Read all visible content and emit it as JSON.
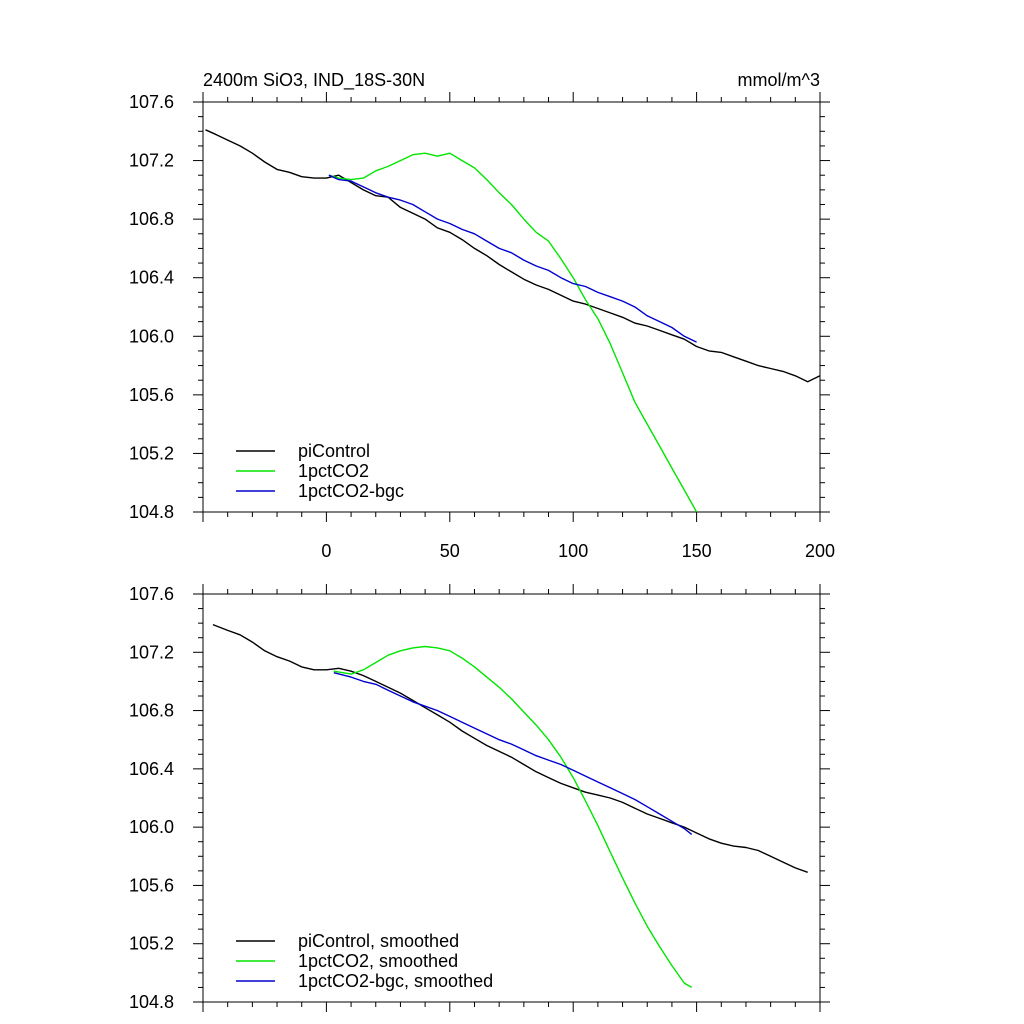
{
  "colors": {
    "piControl": "#000000",
    "1pctCO2": "#00e600",
    "1pctCO2-bgc": "#0000d0",
    "axis": "#000000",
    "background": "#ffffff"
  },
  "chart_data": [
    {
      "type": "line",
      "title": "2400m SiO3, IND_18S-30N",
      "units": "mmol/m^3",
      "xlim": [
        -50,
        200
      ],
      "ylim": [
        104.8,
        107.6
      ],
      "xticks": [
        0,
        50,
        100,
        150,
        200
      ],
      "xtick_labels": [
        "0",
        "50",
        "100",
        "150",
        "200"
      ],
      "yticks": [
        104.8,
        105.2,
        105.6,
        106.0,
        106.4,
        106.8,
        107.2,
        107.6
      ],
      "ytick_labels": [
        "104.8",
        "105.2",
        "105.6",
        "106.0",
        "106.4",
        "106.8",
        "107.2",
        "107.6"
      ],
      "legend_position": "bottom-left",
      "series": [
        {
          "name": "piControl",
          "color_key": "piControl",
          "x": [
            -49,
            -45,
            -40,
            -35,
            -30,
            -25,
            -20,
            -15,
            -10,
            -5,
            0,
            5,
            10,
            15,
            20,
            25,
            30,
            35,
            40,
            45,
            50,
            55,
            60,
            65,
            70,
            75,
            80,
            85,
            90,
            95,
            100,
            105,
            110,
            115,
            120,
            125,
            130,
            135,
            140,
            145,
            150,
            155,
            160,
            165,
            170,
            175,
            180,
            185,
            190,
            195,
            200
          ],
          "y": [
            107.41,
            107.38,
            107.34,
            107.3,
            107.25,
            107.19,
            107.14,
            107.12,
            107.09,
            107.08,
            107.08,
            107.1,
            107.05,
            107.0,
            106.96,
            106.95,
            106.88,
            106.84,
            106.8,
            106.74,
            106.71,
            106.66,
            106.6,
            106.55,
            106.49,
            106.44,
            106.39,
            106.35,
            106.32,
            106.28,
            106.24,
            106.22,
            106.19,
            106.16,
            106.13,
            106.09,
            106.07,
            106.04,
            106.01,
            105.98,
            105.93,
            105.9,
            105.89,
            105.86,
            105.83,
            105.8,
            105.78,
            105.76,
            105.73,
            105.69,
            105.73
          ]
        },
        {
          "name": "1pctCO2",
          "color_key": "1pctCO2",
          "x": [
            1,
            5,
            10,
            15,
            20,
            25,
            30,
            35,
            40,
            45,
            50,
            55,
            60,
            65,
            70,
            75,
            80,
            85,
            90,
            95,
            100,
            105,
            110,
            115,
            120,
            125,
            130,
            135,
            140,
            145,
            150
          ],
          "y": [
            107.1,
            107.08,
            107.07,
            107.08,
            107.13,
            107.16,
            107.2,
            107.24,
            107.25,
            107.23,
            107.25,
            107.2,
            107.15,
            107.07,
            106.98,
            106.9,
            106.8,
            106.71,
            106.65,
            106.53,
            106.4,
            106.25,
            106.12,
            105.95,
            105.75,
            105.55,
            105.4,
            105.25,
            105.1,
            104.95,
            104.8
          ]
        },
        {
          "name": "1pctCO2-bgc",
          "color_key": "1pctCO2-bgc",
          "x": [
            1,
            5,
            10,
            15,
            20,
            25,
            30,
            35,
            40,
            45,
            50,
            55,
            60,
            65,
            70,
            75,
            80,
            85,
            90,
            95,
            100,
            105,
            110,
            115,
            120,
            125,
            130,
            135,
            140,
            145,
            150
          ],
          "y": [
            107.1,
            107.07,
            107.06,
            107.02,
            106.98,
            106.95,
            106.93,
            106.9,
            106.85,
            106.8,
            106.77,
            106.73,
            106.7,
            106.65,
            106.6,
            106.57,
            106.52,
            106.48,
            106.45,
            106.4,
            106.36,
            106.34,
            106.3,
            106.27,
            106.24,
            106.2,
            106.14,
            106.1,
            106.06,
            106.0,
            105.96
          ]
        }
      ]
    },
    {
      "type": "line",
      "title": "",
      "units": "",
      "xlim": [
        -50,
        200
      ],
      "ylim": [
        104.8,
        107.6
      ],
      "xticks": [
        0,
        50,
        100,
        150,
        200
      ],
      "xtick_labels": [],
      "yticks": [
        104.8,
        105.2,
        105.6,
        106.0,
        106.4,
        106.8,
        107.2,
        107.6
      ],
      "ytick_labels": [
        "104.8",
        "105.2",
        "105.6",
        "106.0",
        "106.4",
        "106.8",
        "107.2",
        "107.6"
      ],
      "legend_position": "bottom-left",
      "series": [
        {
          "name": "piControl, smoothed",
          "color_key": "piControl",
          "x": [
            -46,
            -40,
            -35,
            -30,
            -25,
            -20,
            -15,
            -10,
            -5,
            0,
            5,
            10,
            15,
            20,
            25,
            30,
            35,
            40,
            45,
            50,
            55,
            60,
            65,
            70,
            75,
            80,
            85,
            90,
            95,
            100,
            105,
            110,
            115,
            120,
            125,
            130,
            135,
            140,
            145,
            150,
            155,
            160,
            165,
            170,
            175,
            180,
            185,
            190,
            195
          ],
          "y": [
            107.39,
            107.35,
            107.32,
            107.27,
            107.21,
            107.17,
            107.14,
            107.1,
            107.08,
            107.08,
            107.09,
            107.07,
            107.04,
            107.0,
            106.96,
            106.92,
            106.87,
            106.82,
            106.77,
            106.72,
            106.66,
            106.61,
            106.56,
            106.52,
            106.48,
            106.43,
            106.38,
            106.34,
            106.3,
            106.27,
            106.24,
            106.22,
            106.2,
            106.17,
            106.13,
            106.09,
            106.06,
            106.03,
            106.0,
            105.96,
            105.92,
            105.89,
            105.87,
            105.86,
            105.84,
            105.8,
            105.76,
            105.72,
            105.69
          ]
        },
        {
          "name": "1pctCO2, smoothed",
          "color_key": "1pctCO2",
          "x": [
            3,
            10,
            15,
            20,
            25,
            30,
            35,
            40,
            45,
            50,
            55,
            60,
            65,
            70,
            75,
            80,
            85,
            90,
            95,
            100,
            105,
            110,
            115,
            120,
            125,
            130,
            135,
            140,
            145,
            148
          ],
          "y": [
            107.07,
            107.05,
            107.08,
            107.13,
            107.18,
            107.21,
            107.23,
            107.24,
            107.23,
            107.21,
            107.16,
            107.1,
            107.03,
            106.96,
            106.88,
            106.79,
            106.7,
            106.6,
            106.48,
            106.34,
            106.18,
            106.01,
            105.83,
            105.65,
            105.48,
            105.32,
            105.18,
            105.05,
            104.93,
            104.9
          ]
        },
        {
          "name": "1pctCO2-bgc, smoothed",
          "color_key": "1pctCO2-bgc",
          "x": [
            3,
            10,
            15,
            20,
            25,
            30,
            35,
            40,
            45,
            50,
            55,
            60,
            65,
            70,
            75,
            80,
            85,
            90,
            95,
            100,
            105,
            110,
            115,
            120,
            125,
            130,
            135,
            140,
            145,
            148
          ],
          "y": [
            107.06,
            107.03,
            107.0,
            106.98,
            106.94,
            106.9,
            106.86,
            106.83,
            106.8,
            106.76,
            106.72,
            106.68,
            106.64,
            106.6,
            106.57,
            106.53,
            106.49,
            106.46,
            106.43,
            106.39,
            106.35,
            106.31,
            106.27,
            106.23,
            106.19,
            106.14,
            106.09,
            106.04,
            105.99,
            105.95
          ]
        }
      ]
    }
  ]
}
